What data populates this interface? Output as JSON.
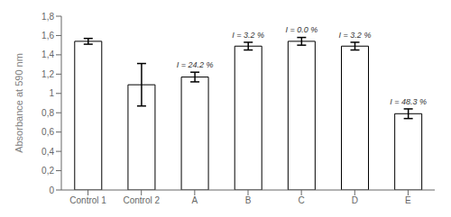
{
  "chart_data": {
    "type": "bar",
    "categories": [
      "Control 1",
      "Control 2",
      "A",
      "B",
      "C",
      "D",
      "E"
    ],
    "values": [
      1.54,
      1.09,
      1.17,
      1.49,
      1.54,
      1.49,
      0.79
    ],
    "errors": [
      0.03,
      0.22,
      0.05,
      0.04,
      0.04,
      0.04,
      0.05
    ],
    "annotations": [
      null,
      null,
      "I = 24.2 %",
      "I = 3.2 %",
      "I = 0.0 %",
      "I = 3.2 %",
      "I = 48.3 %"
    ],
    "color": "#ffffff",
    "ylabel": "Absorbance at 590 nm",
    "ylim": [
      0,
      1.8
    ],
    "yticks": [
      0,
      {
        "value": 0.2,
        "label": "0,2"
      },
      {
        "value": 0.4,
        "label": "0,4"
      },
      {
        "value": 0.6,
        "label": "0,6"
      },
      {
        "value": 0.8,
        "label": "0,8"
      },
      1,
      {
        "value": 1.2,
        "label": "1,2"
      },
      {
        "value": 1.4,
        "label": "1,4"
      },
      {
        "value": 1.6,
        "label": "1,6"
      },
      {
        "value": 1.8,
        "label": "1,8"
      }
    ],
    "grid": false
  }
}
